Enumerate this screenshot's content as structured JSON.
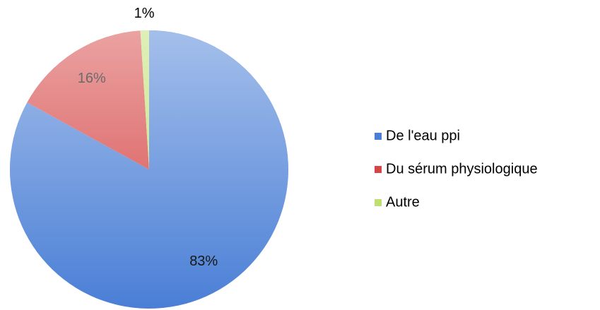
{
  "chart_data": {
    "type": "pie",
    "categories": [
      "De l'eau ppi",
      "Du sérum physiologique",
      "Autre"
    ],
    "values": [
      83,
      16,
      1
    ],
    "value_labels": [
      "83%",
      "16%",
      "1%"
    ],
    "colors": [
      "#4a7fd6",
      "#d64545",
      "#bfe070"
    ],
    "legend": "right"
  }
}
